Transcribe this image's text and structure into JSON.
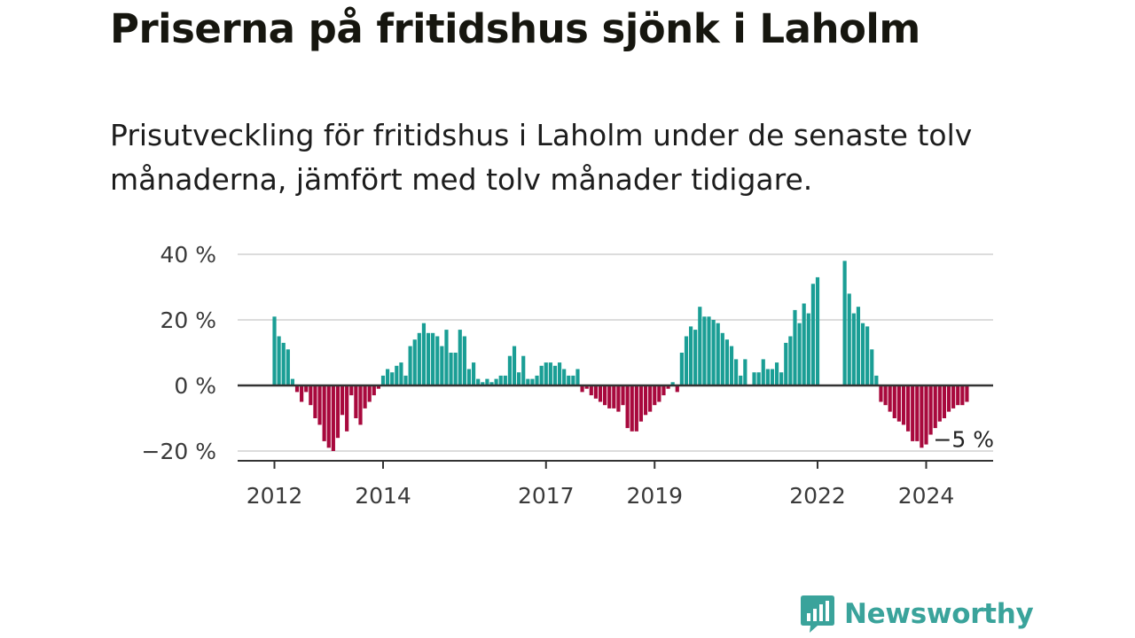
{
  "header": {
    "title": "Priserna på fritidshus sjönk i Laholm",
    "subtitle": "Prisutveckling för fritidshus i Laholm under de senaste tolv månaderna, jämfört med tolv månader tidigare."
  },
  "brand": {
    "name": "Newsworthy",
    "icon": "newsworthy-logo-icon",
    "color": "#3aa39b"
  },
  "colors": {
    "positive": "#1a9e95",
    "negative": "#a8093d",
    "gridline": "#dcdcdc",
    "axis": "#333333"
  },
  "chart_data": {
    "type": "bar",
    "title": "",
    "xlabel": "",
    "ylabel": "",
    "ylim": [
      -22,
      40
    ],
    "y_ticks": [
      {
        "value": 40,
        "label": "40 %"
      },
      {
        "value": 20,
        "label": "20 %"
      },
      {
        "value": 0,
        "label": "0 %"
      },
      {
        "value": -20,
        "label": "−20 %"
      }
    ],
    "x_ticks": [
      {
        "value": 2012,
        "label": "2012"
      },
      {
        "value": 2014,
        "label": "2014"
      },
      {
        "value": 2017,
        "label": "2017"
      },
      {
        "value": 2019,
        "label": "2019"
      },
      {
        "value": 2022,
        "label": "2022"
      },
      {
        "value": 2024,
        "label": "2024"
      }
    ],
    "x_start": 2012,
    "months_per_bar": 1,
    "values": [
      21,
      15,
      13,
      11,
      2,
      -2,
      -5,
      -2,
      -6,
      -10,
      -12,
      -17,
      -19,
      -20,
      -16,
      -9,
      -14,
      -3,
      -10,
      -12,
      -7,
      -5,
      -3,
      -1,
      3,
      5,
      4,
      6,
      7,
      3,
      12,
      14,
      16,
      19,
      16,
      16,
      15,
      12,
      17,
      10,
      10,
      17,
      15,
      5,
      7,
      2,
      1,
      2,
      1,
      2,
      3,
      3,
      9,
      12,
      4,
      9,
      2,
      2,
      3,
      6,
      7,
      7,
      6,
      7,
      5,
      3,
      3,
      5,
      -2,
      -1,
      -3,
      -4,
      -5,
      -6,
      -7,
      -7,
      -8,
      -6,
      -13,
      -14,
      -14,
      -11,
      -9,
      -8,
      -6,
      -5,
      -3,
      -1,
      1,
      -2,
      10,
      15,
      18,
      17,
      24,
      21,
      21,
      20,
      19,
      16,
      14,
      12,
      8,
      3,
      8,
      0,
      4,
      4,
      8,
      5,
      5,
      7,
      4,
      13,
      15,
      23,
      19,
      25,
      22,
      31,
      33,
      0,
      0,
      0,
      0,
      0,
      38,
      28,
      22,
      24,
      19,
      18,
      11,
      3,
      -5,
      -6,
      -8,
      -10,
      -11,
      -12,
      -14,
      -17,
      -17,
      -19,
      -18,
      -15,
      -13,
      -11,
      -10,
      -8,
      -7,
      -6,
      -6,
      -5
    ],
    "annotation": {
      "label": "−5 %",
      "value": -5
    }
  }
}
